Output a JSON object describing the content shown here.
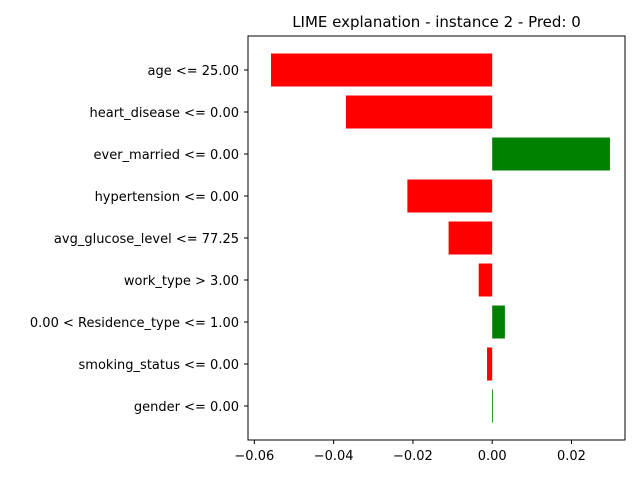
{
  "chart_data": {
    "type": "bar",
    "orientation": "horizontal",
    "title": "LIME explanation - instance 2 - Pred: 0",
    "xlabel": "",
    "ylabel": "",
    "xlim": [
      -0.0616,
      0.0335
    ],
    "x_ticks": [
      {
        "value": -0.06,
        "label": "−0.06"
      },
      {
        "value": -0.04,
        "label": "−0.04"
      },
      {
        "value": -0.02,
        "label": "−0.02"
      },
      {
        "value": 0.0,
        "label": "0.00"
      },
      {
        "value": 0.02,
        "label": "0.02"
      }
    ],
    "categories": [
      "age <= 25.00",
      "heart_disease <= 0.00",
      "ever_married <= 0.00",
      "hypertension <= 0.00",
      "avg_glucose_level <= 77.25",
      "work_type > 3.00",
      "0.00 < Residence_type <= 1.00",
      "smoking_status <= 0.00",
      "gender <= 0.00"
    ],
    "values": [
      -0.0558,
      -0.0369,
      0.0297,
      -0.0214,
      -0.011,
      -0.0034,
      0.0032,
      -0.0013,
      0.0002
    ],
    "colors": {
      "positive": "#008000",
      "negative": "#ff0000"
    },
    "grid": false,
    "legend": "none"
  }
}
